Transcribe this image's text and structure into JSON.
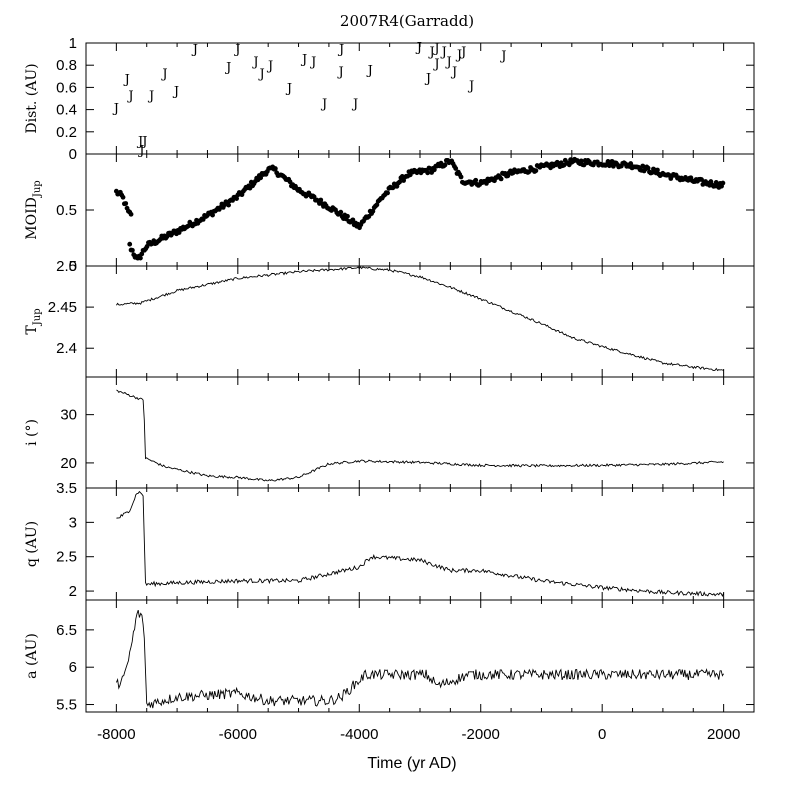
{
  "chart_data": {
    "type": "multi-panel",
    "title": "2007R4(Garradd)",
    "xlabel": "Time (yr AD)",
    "xlim": [
      -8500,
      2500
    ],
    "xticks": [
      -8000,
      -6000,
      -4000,
      -2000,
      0,
      2000
    ],
    "panels": [
      {
        "id": "dist",
        "type": "scatter-text",
        "ylabel": "Dist. (AU)",
        "ylim": [
          0,
          1
        ],
        "yticks": [
          0,
          0.2,
          0.4,
          0.6,
          0.8,
          1
        ],
        "marker_text": "J",
        "points": [
          [
            -8000,
            0.42
          ],
          [
            -7600,
            0.12
          ],
          [
            -7820,
            0.68
          ],
          [
            -7760,
            0.53
          ],
          [
            -7420,
            0.53
          ],
          [
            -7200,
            0.73
          ],
          [
            -7010,
            0.57
          ],
          [
            -6700,
            0.95
          ],
          [
            -6150,
            0.79
          ],
          [
            -6000,
            0.95
          ],
          [
            -5700,
            0.84
          ],
          [
            -5600,
            0.73
          ],
          [
            -5460,
            0.8
          ],
          [
            -5150,
            0.6
          ],
          [
            -4900,
            0.86
          ],
          [
            -4750,
            0.84
          ],
          [
            -4570,
            0.46
          ],
          [
            -4290,
            0.95
          ],
          [
            -4300,
            0.75
          ],
          [
            -4060,
            0.46
          ],
          [
            -3820,
            0.76
          ],
          [
            -3010,
            0.97
          ],
          [
            -2860,
            0.69
          ],
          [
            -2800,
            0.93
          ],
          [
            -2720,
            0.96
          ],
          [
            -2720,
            0.82
          ],
          [
            -2600,
            0.93
          ],
          [
            -2520,
            0.84
          ],
          [
            -2430,
            0.75
          ],
          [
            -2350,
            0.9
          ],
          [
            -2280,
            0.93
          ],
          [
            -2150,
            0.62
          ],
          [
            -1620,
            0.89
          ],
          [
            -7580,
            0.04
          ],
          [
            -7530,
            0.12
          ]
        ]
      },
      {
        "id": "moid",
        "type": "scatter",
        "ylabel": "MOID",
        "ylabel_sub": "Jup",
        "ylim": [
          0,
          1
        ],
        "yticks": [
          0,
          0.5
        ],
        "segments": [
          {
            "x_start": -8000,
            "x_end": -7750,
            "anchors": [
              [
                -8000,
                0.66
              ],
              [
                -7900,
                0.62
              ],
              [
                -7800,
                0.47
              ]
            ]
          },
          {
            "x_start": -7780,
            "x_end": 2000,
            "anchors": [
              [
                -7780,
                0.18
              ],
              [
                -7650,
                0.05
              ],
              [
                -7500,
                0.18
              ],
              [
                -7000,
                0.31
              ],
              [
                -6500,
                0.45
              ],
              [
                -6000,
                0.62
              ],
              [
                -5500,
                0.86
              ],
              [
                -5400,
                0.86
              ],
              [
                -5000,
                0.68
              ],
              [
                -4500,
                0.53
              ],
              [
                -4000,
                0.35
              ],
              [
                -3600,
                0.63
              ],
              [
                -3200,
                0.82
              ],
              [
                -2800,
                0.86
              ],
              [
                -2500,
                0.94
              ],
              [
                -2300,
                0.76
              ],
              [
                -2000,
                0.74
              ],
              [
                -1500,
                0.83
              ],
              [
                -1000,
                0.88
              ],
              [
                -500,
                0.93
              ],
              [
                0,
                0.92
              ],
              [
                500,
                0.9
              ],
              [
                1000,
                0.82
              ],
              [
                1500,
                0.76
              ],
              [
                2000,
                0.72
              ]
            ]
          }
        ]
      },
      {
        "id": "tjup",
        "type": "line",
        "ylabel": "T",
        "ylabel_sub": "Jup",
        "ylim": [
          2.365,
          2.5
        ],
        "yticks": [
          2.4,
          2.45,
          2.5
        ],
        "anchors": [
          [
            -8000,
            2.453
          ],
          [
            -7600,
            2.455
          ],
          [
            -7000,
            2.47
          ],
          [
            -6000,
            2.485
          ],
          [
            -5000,
            2.493
          ],
          [
            -4000,
            2.498
          ],
          [
            -3500,
            2.495
          ],
          [
            -3000,
            2.487
          ],
          [
            -2500,
            2.474
          ],
          [
            -2000,
            2.46
          ],
          [
            -1500,
            2.445
          ],
          [
            -1000,
            2.43
          ],
          [
            -500,
            2.413
          ],
          [
            0,
            2.402
          ],
          [
            500,
            2.392
          ],
          [
            1000,
            2.382
          ],
          [
            1500,
            2.377
          ],
          [
            2000,
            2.373
          ]
        ]
      },
      {
        "id": "inc",
        "type": "line",
        "ylabel": "i (°)",
        "ylim": [
          14.8,
          37.8
        ],
        "yticks": [
          20,
          30
        ],
        "anchors": [
          [
            -8000,
            35.0
          ],
          [
            -7620,
            33.3
          ],
          [
            -7550,
            33.0
          ],
          [
            -7520,
            21.0
          ],
          [
            -7200,
            19.2
          ],
          [
            -6500,
            17.3
          ],
          [
            -6000,
            17.0
          ],
          [
            -5500,
            16.3
          ],
          [
            -5000,
            17.0
          ],
          [
            -4500,
            19.8
          ],
          [
            -4000,
            20.4
          ],
          [
            -3000,
            20.1
          ],
          [
            -2000,
            19.5
          ],
          [
            -1000,
            19.4
          ],
          [
            0,
            19.5
          ],
          [
            1000,
            19.7
          ],
          [
            2000,
            20.2
          ]
        ]
      },
      {
        "id": "q",
        "type": "line",
        "ylabel": "q (AU)",
        "ylim": [
          1.87,
          3.5
        ],
        "yticks": [
          2,
          2.5,
          3,
          3.5
        ],
        "anchors": [
          [
            -8000,
            3.05
          ],
          [
            -7800,
            3.15
          ],
          [
            -7650,
            3.45
          ],
          [
            -7560,
            3.4
          ],
          [
            -7520,
            2.1
          ],
          [
            -7000,
            2.12
          ],
          [
            -6000,
            2.15
          ],
          [
            -5000,
            2.15
          ],
          [
            -4500,
            2.25
          ],
          [
            -4000,
            2.35
          ],
          [
            -3800,
            2.5
          ],
          [
            -3000,
            2.45
          ],
          [
            -2500,
            2.3
          ],
          [
            -2000,
            2.3
          ],
          [
            -1000,
            2.15
          ],
          [
            0,
            2.05
          ],
          [
            1000,
            1.98
          ],
          [
            2000,
            1.95
          ]
        ]
      },
      {
        "id": "a",
        "type": "line",
        "ylabel": "a (AU)",
        "ylim": [
          5.4,
          6.9
        ],
        "yticks": [
          5.5,
          6,
          6.5
        ],
        "anchors": [
          [
            -8000,
            5.75
          ],
          [
            -7850,
            5.9
          ],
          [
            -7750,
            6.3
          ],
          [
            -7650,
            6.75
          ],
          [
            -7550,
            6.6
          ],
          [
            -7500,
            5.5
          ],
          [
            -7000,
            5.6
          ],
          [
            -6000,
            5.65
          ],
          [
            -5500,
            5.55
          ],
          [
            -4500,
            5.55
          ],
          [
            -4300,
            5.6
          ],
          [
            -3900,
            5.9
          ],
          [
            -3200,
            5.9
          ],
          [
            -2900,
            5.9
          ],
          [
            -2700,
            5.75
          ],
          [
            -2200,
            5.9
          ],
          [
            -1000,
            5.9
          ],
          [
            2000,
            5.9
          ]
        ]
      }
    ]
  }
}
